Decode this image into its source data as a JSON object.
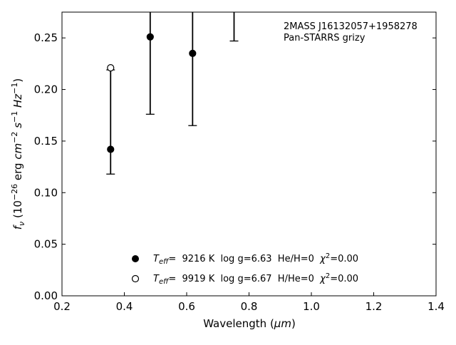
{
  "chart_data": {
    "type": "scatter",
    "annotation": [
      "2MASS J16132057+1958278",
      "Pan-STARRS grizy"
    ],
    "xlabel": {
      "prefix": "Wavelength (",
      "unit": "μm",
      "suffix": ")"
    },
    "ylabel": {
      "f": "f",
      "sub": "ν",
      "p1": " (10",
      "e1": "−26",
      "p2": " erg ",
      "cm": "cm",
      "e2": "−2",
      "s": " s",
      "e3": "−1",
      "hz": " Hz",
      "e4": "−1",
      "p3": ")"
    },
    "xlim": [
      0.2,
      1.4
    ],
    "ylim": [
      0.0,
      0.275
    ],
    "x_ticks": [
      "0.2",
      "0.4",
      "0.6",
      "0.8",
      "1.0",
      "1.2",
      "1.4"
    ],
    "y_ticks": [
      "0.00",
      "0.05",
      "0.10",
      "0.15",
      "0.20",
      "0.25"
    ],
    "grid": false,
    "legend_position": "lower-center",
    "observed": {
      "x": [
        0.356,
        0.483,
        0.619,
        0.752
      ],
      "y_low": [
        0.118,
        0.176,
        0.165,
        0.247
      ],
      "y_high": [
        0.219,
        0.285,
        0.285,
        0.285
      ],
      "points": [
        {
          "x": 0.356,
          "y": 0.142
        },
        {
          "x": 0.483,
          "y": 0.251
        },
        {
          "x": 0.619,
          "y": 0.235
        }
      ]
    },
    "series": [
      {
        "marker": "filled-circle",
        "points": [
          {
            "x": 0.356,
            "y": 0.142
          },
          {
            "x": 0.483,
            "y": 0.251
          },
          {
            "x": 0.619,
            "y": 0.235
          }
        ],
        "legend": {
          "t": "T",
          "sub": "eff",
          "rest": "=  9216 K  log g=6.63  He/H=0  ",
          "chi": "χ",
          "sup": "2",
          "end": "=0.00"
        }
      },
      {
        "marker": "open-circle",
        "points": [
          {
            "x": 0.356,
            "y": 0.221
          }
        ],
        "legend": {
          "t": "T",
          "sub": "eff",
          "rest": "=  9919 K  log g=6.67  H/He=0  ",
          "chi": "χ",
          "sup": "2",
          "end": "=0.00"
        }
      }
    ]
  }
}
